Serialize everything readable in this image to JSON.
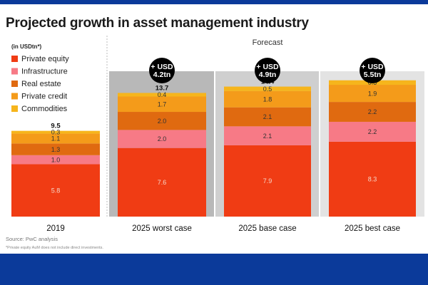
{
  "title": "Projected growth in asset management industry",
  "source": "Source: PwC analysis",
  "footnote": "*Private equity AuM does not include direct investments.",
  "colors": {
    "band": "#0b3a9a",
    "panel_worst": "#b8b8b8",
    "panel_base": "#cfcfcf",
    "panel_best": "#e3e3e3",
    "badge": "#000000"
  },
  "chart_data": {
    "type": "bar",
    "stacked": true,
    "unit_note": "(in USDtn*)",
    "forecast_label": "Forecast",
    "categories": [
      "2019",
      "2025 worst case",
      "2025 base case",
      "2025 best case"
    ],
    "series": [
      {
        "name": "Private equity",
        "color": "#f03c14",
        "values": [
          5.8,
          7.6,
          7.9,
          8.3
        ]
      },
      {
        "name": "Infrastructure",
        "color": "#f77a86",
        "values": [
          1.0,
          2.0,
          2.1,
          2.2
        ]
      },
      {
        "name": "Real estate",
        "color": "#e06a10",
        "values": [
          1.3,
          2.0,
          2.1,
          2.2
        ]
      },
      {
        "name": "Private credit",
        "color": "#f49b1a",
        "values": [
          1.1,
          1.7,
          1.8,
          1.9
        ]
      },
      {
        "name": "Commodities",
        "color": "#f6b51c",
        "values": [
          0.3,
          0.4,
          0.5,
          0.5
        ]
      }
    ],
    "labels": [
      [
        "5.8",
        "7.6",
        "7.9",
        "8.3"
      ],
      [
        "1.0",
        "2.0",
        "2.1",
        "2.2"
      ],
      [
        "1.3",
        "2.0",
        "2.1",
        "2.2"
      ],
      [
        "1.1",
        "1.7",
        "1.8",
        "1.9"
      ],
      [
        "0.3",
        "0.4",
        "0.5",
        "0.5"
      ]
    ],
    "totals": [
      "9.5",
      "13.7",
      "14.4",
      "15.0"
    ],
    "growth_badges": [
      null,
      "+ USD\n4.2tn",
      "+ USD\n4.9tn",
      "+ USD\n5.5tn"
    ],
    "ylim": [
      0,
      16
    ],
    "legend_position": "top-left",
    "grid": false
  }
}
